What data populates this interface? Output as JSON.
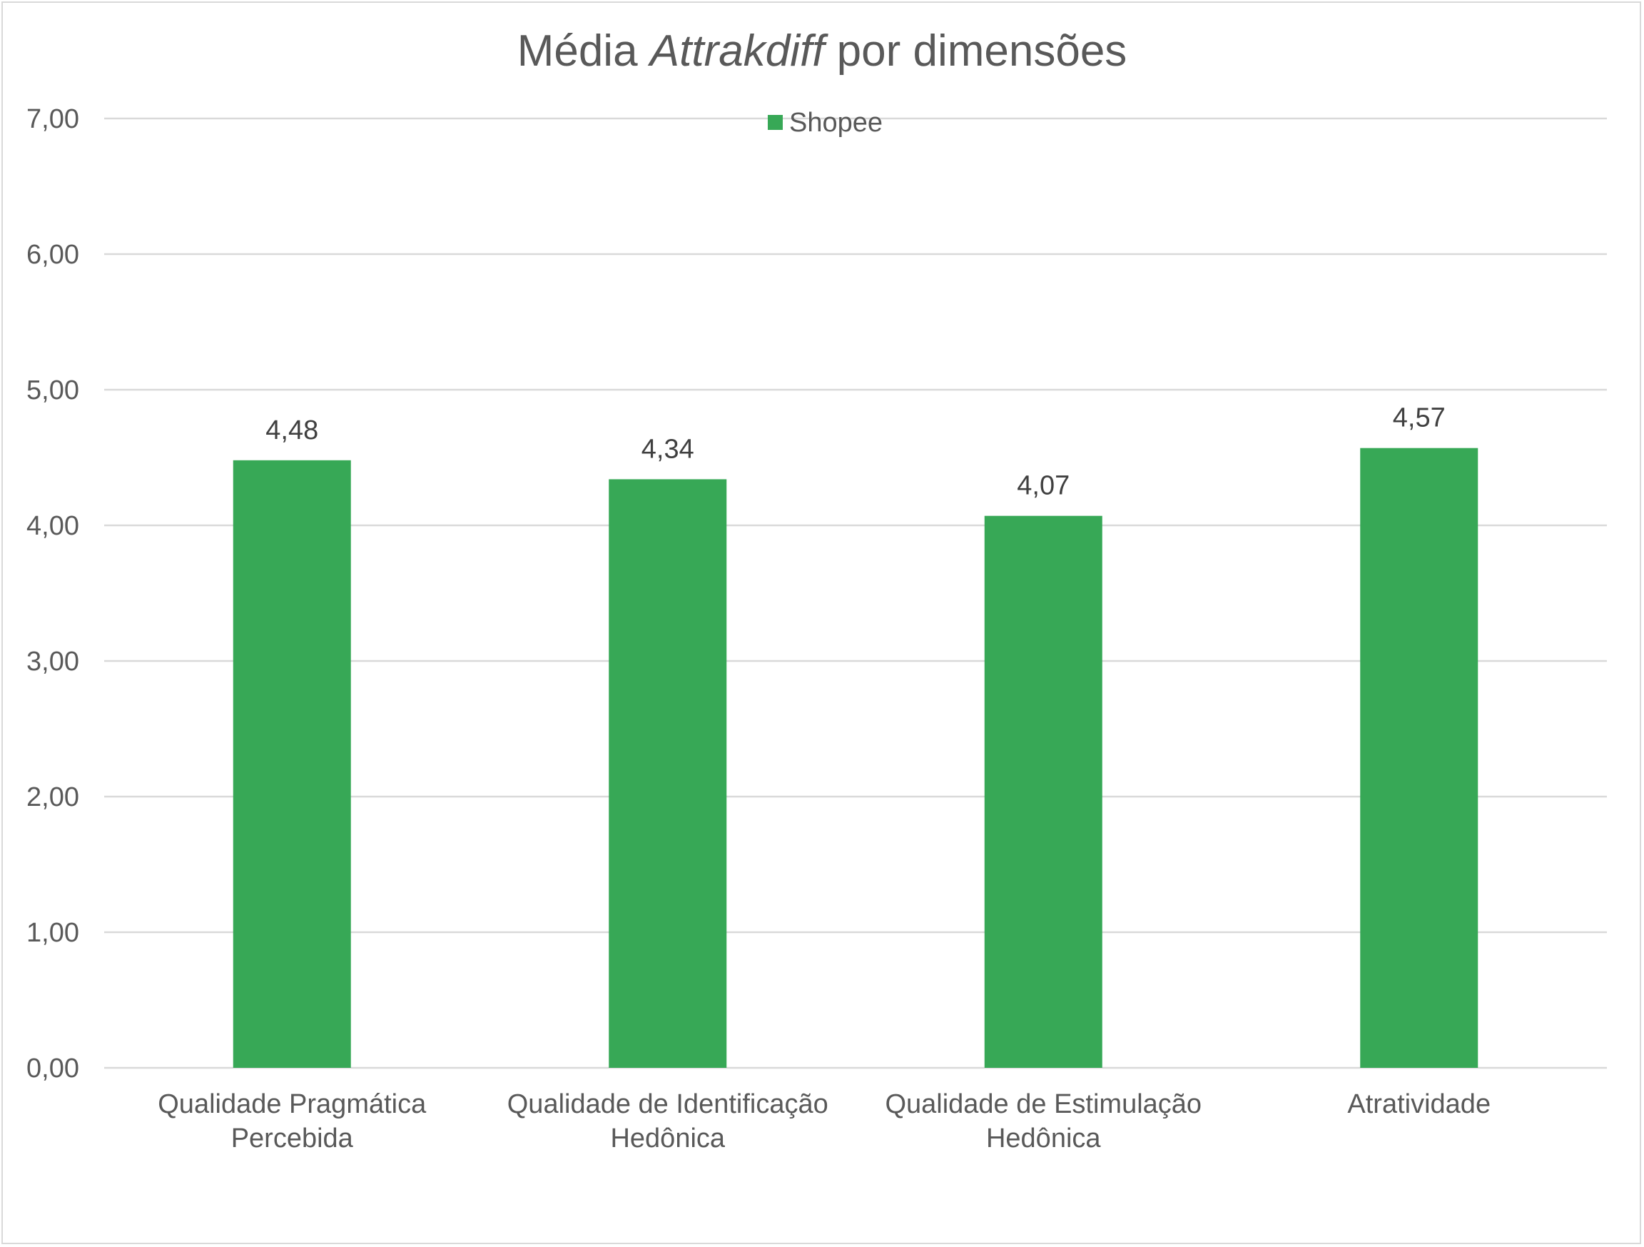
{
  "chart_data": {
    "type": "bar",
    "title": "Média Attrakdiff por dimensões",
    "title_parts": {
      "before": "Média ",
      "italic": "Attrakdiff",
      "after": " por dimensões"
    },
    "categories": [
      [
        "Qualidade Pragmática",
        "Percebida"
      ],
      [
        "Qualidade de Identificação",
        "Hedônica"
      ],
      [
        "Qualidade de Estimulação",
        "Hedônica"
      ],
      [
        "Atratividade"
      ]
    ],
    "series": [
      {
        "name": "Shopee",
        "color": "#37a856",
        "values": [
          4.48,
          4.34,
          4.07,
          4.57
        ],
        "value_labels": [
          "4,48",
          "4,34",
          "4,07",
          "4,57"
        ]
      }
    ],
    "ylim": [
      0,
      7
    ],
    "yticks": [
      0,
      1,
      2,
      3,
      4,
      5,
      6,
      7
    ],
    "ytick_labels": [
      "0,00",
      "1,00",
      "2,00",
      "3,00",
      "4,00",
      "5,00",
      "6,00",
      "7,00"
    ],
    "xlabel": "",
    "ylabel": "",
    "grid": true,
    "legend_position": "top-center",
    "gridline_color": "#d9d9d9"
  }
}
